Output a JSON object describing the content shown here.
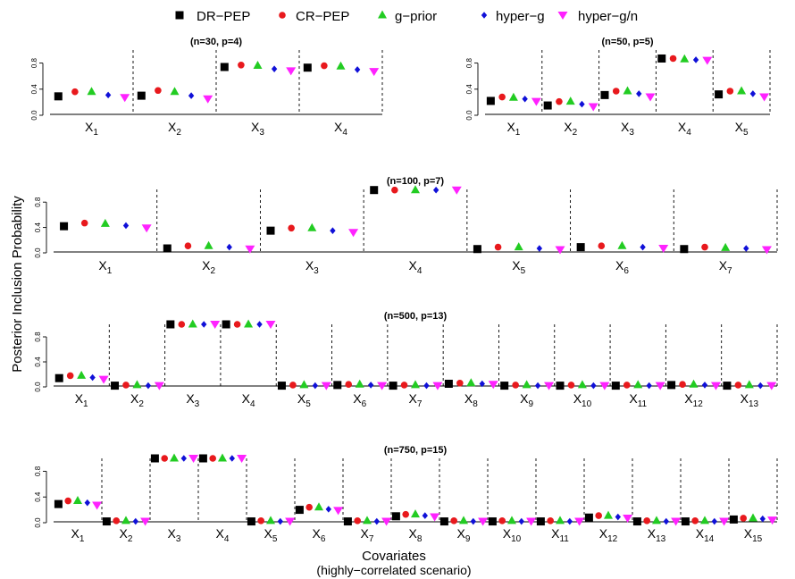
{
  "ylabel": "Posterior Inclusion Probability",
  "xlabel": "Covariates",
  "xlabel_sub": "(highly−correlated scenario)",
  "series": [
    {
      "name": "DR−PEP",
      "color": "#000000",
      "marker": "square"
    },
    {
      "name": "CR−PEP",
      "color": "#e8191d",
      "marker": "circle"
    },
    {
      "name": "g−prior",
      "color": "#22cc22",
      "marker": "triangle-up"
    },
    {
      "name": "hyper−g",
      "color": "#1010d8",
      "marker": "diamond"
    },
    {
      "name": "hyper−g/n",
      "color": "#ff22ff",
      "marker": "triangle-down"
    }
  ],
  "yticks": [
    "0.0",
    "0.4",
    "0.8"
  ],
  "chart_data": [
    {
      "type": "scatter",
      "title": "(n=30, p=4)",
      "ylim": [
        0,
        1
      ],
      "categories": [
        "X1",
        "X2",
        "X3",
        "X4"
      ],
      "series": [
        {
          "name": "DR−PEP",
          "values": [
            0.29,
            0.3,
            0.74,
            0.73
          ]
        },
        {
          "name": "CR−PEP",
          "values": [
            0.36,
            0.38,
            0.77,
            0.76
          ]
        },
        {
          "name": "g−prior",
          "values": [
            0.36,
            0.36,
            0.76,
            0.75
          ]
        },
        {
          "name": "hyper−g",
          "values": [
            0.31,
            0.3,
            0.71,
            0.7
          ]
        },
        {
          "name": "hyper−g/n",
          "values": [
            0.27,
            0.25,
            0.68,
            0.67
          ]
        }
      ]
    },
    {
      "type": "scatter",
      "title": "(n=50, p=5)",
      "ylim": [
        0,
        1
      ],
      "categories": [
        "X1",
        "X2",
        "X3",
        "X4",
        "X5"
      ],
      "series": [
        {
          "name": "DR−PEP",
          "values": [
            0.22,
            0.15,
            0.31,
            0.87,
            0.32
          ]
        },
        {
          "name": "CR−PEP",
          "values": [
            0.28,
            0.21,
            0.37,
            0.87,
            0.37
          ]
        },
        {
          "name": "g−prior",
          "values": [
            0.27,
            0.21,
            0.37,
            0.86,
            0.37
          ]
        },
        {
          "name": "hyper−g",
          "values": [
            0.25,
            0.17,
            0.33,
            0.85,
            0.33
          ]
        },
        {
          "name": "hyper−g/n",
          "values": [
            0.21,
            0.13,
            0.28,
            0.84,
            0.28
          ]
        }
      ]
    },
    {
      "type": "scatter",
      "title": "(n=100, p=7)",
      "ylim": [
        0,
        1
      ],
      "categories": [
        "X1",
        "X2",
        "X3",
        "X4",
        "X5",
        "X6",
        "X7"
      ],
      "series": [
        {
          "name": "DR−PEP",
          "values": [
            0.42,
            0.07,
            0.35,
            0.99,
            0.06,
            0.09,
            0.06
          ]
        },
        {
          "name": "CR−PEP",
          "values": [
            0.47,
            0.11,
            0.39,
            0.99,
            0.09,
            0.11,
            0.09
          ]
        },
        {
          "name": "g−prior",
          "values": [
            0.46,
            0.11,
            0.39,
            0.99,
            0.09,
            0.11,
            0.08
          ]
        },
        {
          "name": "hyper−g",
          "values": [
            0.43,
            0.09,
            0.35,
            0.99,
            0.07,
            0.09,
            0.07
          ]
        },
        {
          "name": "hyper−g/n",
          "values": [
            0.39,
            0.06,
            0.32,
            0.99,
            0.05,
            0.07,
            0.05
          ]
        }
      ]
    },
    {
      "type": "scatter",
      "title": "(n=500, p=13)",
      "ylim": [
        0,
        1
      ],
      "categories": [
        "X1",
        "X2",
        "X3",
        "X4",
        "X5",
        "X6",
        "X7",
        "X8",
        "X9",
        "X10",
        "X11",
        "X12",
        "X13"
      ],
      "series": [
        {
          "name": "DR−PEP",
          "values": [
            0.14,
            0.02,
            1.0,
            1.0,
            0.02,
            0.03,
            0.02,
            0.05,
            0.02,
            0.02,
            0.02,
            0.03,
            0.02
          ]
        },
        {
          "name": "CR−PEP",
          "values": [
            0.18,
            0.03,
            1.0,
            1.0,
            0.03,
            0.04,
            0.03,
            0.06,
            0.03,
            0.03,
            0.03,
            0.04,
            0.03
          ]
        },
        {
          "name": "g−prior",
          "values": [
            0.18,
            0.03,
            1.0,
            1.0,
            0.03,
            0.04,
            0.03,
            0.06,
            0.03,
            0.03,
            0.03,
            0.04,
            0.03
          ]
        },
        {
          "name": "hyper−g",
          "values": [
            0.15,
            0.02,
            1.0,
            1.0,
            0.02,
            0.03,
            0.02,
            0.05,
            0.02,
            0.02,
            0.02,
            0.03,
            0.02
          ]
        },
        {
          "name": "hyper−g/n",
          "values": [
            0.12,
            0.02,
            1.0,
            1.0,
            0.02,
            0.02,
            0.02,
            0.04,
            0.02,
            0.02,
            0.02,
            0.02,
            0.02
          ]
        }
      ]
    },
    {
      "type": "scatter",
      "title": "(n=750, p=15)",
      "ylim": [
        0,
        1
      ],
      "categories": [
        "X1",
        "X2",
        "X3",
        "X4",
        "X5",
        "X6",
        "X7",
        "X8",
        "X9",
        "X10",
        "X11",
        "X12",
        "X13",
        "X14",
        "X15"
      ],
      "series": [
        {
          "name": "DR−PEP",
          "values": [
            0.29,
            0.02,
            1.0,
            1.0,
            0.02,
            0.2,
            0.02,
            0.1,
            0.02,
            0.02,
            0.02,
            0.08,
            0.02,
            0.02,
            0.05
          ]
        },
        {
          "name": "CR−PEP",
          "values": [
            0.34,
            0.03,
            1.0,
            1.0,
            0.03,
            0.24,
            0.03,
            0.13,
            0.03,
            0.03,
            0.03,
            0.11,
            0.03,
            0.03,
            0.07
          ]
        },
        {
          "name": "g−prior",
          "values": [
            0.34,
            0.03,
            1.0,
            1.0,
            0.03,
            0.24,
            0.03,
            0.13,
            0.03,
            0.03,
            0.03,
            0.11,
            0.03,
            0.03,
            0.07
          ]
        },
        {
          "name": "hyper−g",
          "values": [
            0.31,
            0.02,
            1.0,
            1.0,
            0.02,
            0.21,
            0.02,
            0.11,
            0.02,
            0.02,
            0.02,
            0.09,
            0.02,
            0.02,
            0.06
          ]
        },
        {
          "name": "hyper−g/n",
          "values": [
            0.27,
            0.02,
            1.0,
            1.0,
            0.02,
            0.19,
            0.02,
            0.09,
            0.02,
            0.02,
            0.02,
            0.07,
            0.02,
            0.02,
            0.04
          ]
        }
      ]
    }
  ]
}
